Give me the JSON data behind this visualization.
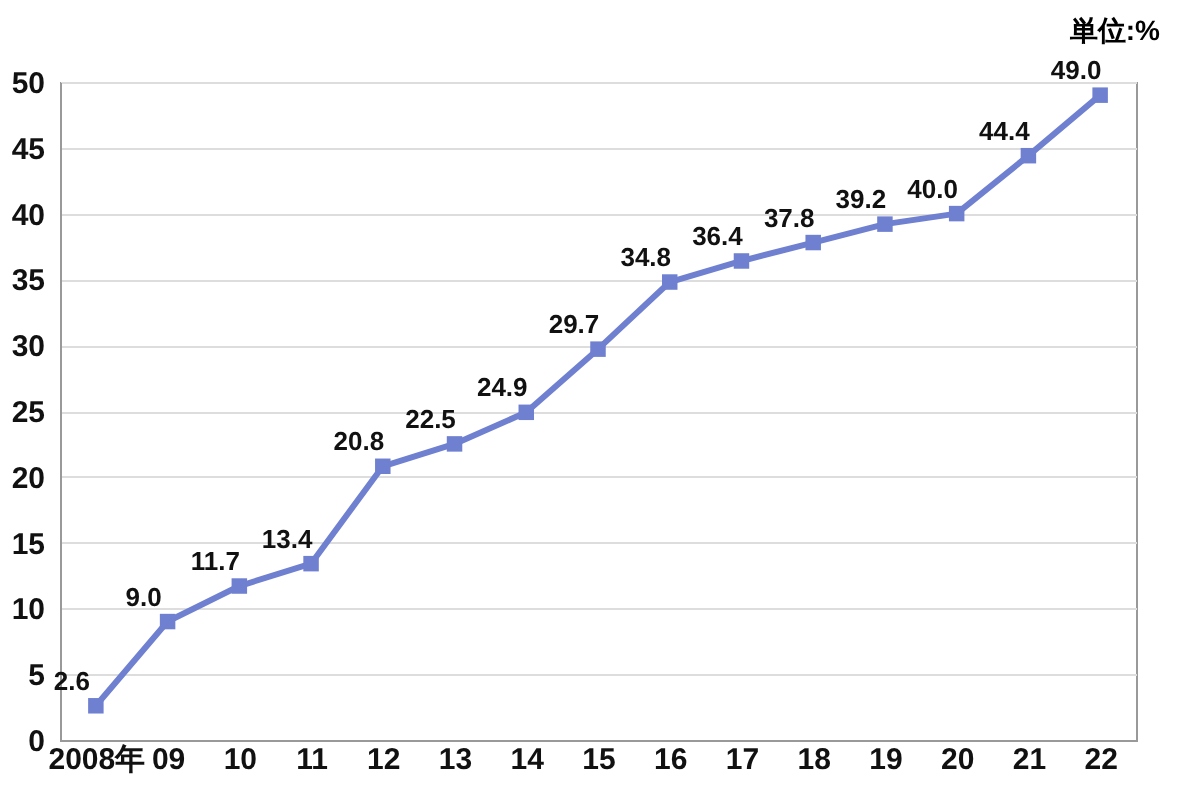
{
  "chart_data": {
    "type": "line",
    "categories": [
      "2008年",
      "09",
      "10",
      "11",
      "12",
      "13",
      "14",
      "15",
      "16",
      "17",
      "18",
      "19",
      "20",
      "21",
      "22"
    ],
    "series": [
      {
        "color": "#6f80d0",
        "values": [
          2.6,
          9.0,
          11.7,
          13.4,
          20.8,
          22.5,
          24.9,
          29.7,
          34.8,
          36.4,
          37.8,
          39.2,
          40.0,
          44.4,
          49.0
        ],
        "value_labels": [
          "2.6",
          "9.0",
          "11.7",
          "13.4",
          "20.8",
          "22.5",
          "24.9",
          "29.7",
          "34.8",
          "36.4",
          "37.8",
          "39.2",
          "40.0",
          "44.4",
          "49.0"
        ]
      }
    ],
    "ylim": [
      0,
      50
    ],
    "yticks": [
      0,
      5,
      10,
      15,
      20,
      25,
      30,
      35,
      40,
      45,
      50
    ],
    "grid": "y",
    "marker": "square",
    "annotations": [
      "単位:%"
    ]
  }
}
